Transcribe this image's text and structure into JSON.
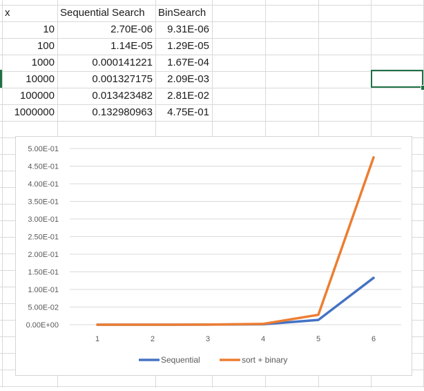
{
  "sheet": {
    "header": {
      "x": "x",
      "seq": "Sequential Search",
      "bin": "BinSearch"
    },
    "rows": [
      {
        "x": "10",
        "seq": "2.70E-06",
        "bin": "9.31E-06"
      },
      {
        "x": "100",
        "seq": "1.14E-05",
        "bin": "1.29E-05"
      },
      {
        "x": "1000",
        "seq": "0.000141221",
        "bin": "1.67E-04"
      },
      {
        "x": "10000",
        "seq": "0.001327175",
        "bin": "2.09E-03"
      },
      {
        "x": "100000",
        "seq": "0.013423482",
        "bin": "2.81E-02"
      },
      {
        "x": "1000000",
        "seq": "0.132980963",
        "bin": "4.75E-01"
      }
    ]
  },
  "chart_data": {
    "type": "line",
    "title": "",
    "x": [
      1,
      2,
      3,
      4,
      5,
      6
    ],
    "x_tick_labels": [
      "1",
      "2",
      "3",
      "4",
      "5",
      "6"
    ],
    "y_tick_labels": [
      "0.00E+00",
      "5.00E-02",
      "1.00E-01",
      "1.50E-01",
      "2.00E-01",
      "2.50E-01",
      "3.00E-01",
      "3.50E-01",
      "4.00E-01",
      "4.50E-01",
      "5.00E-01"
    ],
    "ylim": [
      0,
      0.5
    ],
    "ystep": 0.05,
    "grid": true,
    "legend_position": "bottom",
    "series": [
      {
        "name": "Sequential",
        "color": "#4472c4",
        "values": [
          2.7e-06,
          1.14e-05,
          0.000141221,
          0.001327175,
          0.013423482,
          0.132980963
        ]
      },
      {
        "name": "sort + binary",
        "color": "#ed7d31",
        "values": [
          9.31e-06,
          1.29e-05,
          0.000167,
          0.00209,
          0.0281,
          0.475
        ]
      }
    ]
  },
  "colors": {
    "gridline": "#d9d9d9",
    "chart_grid": "#d9d9d9",
    "selection": "#1e7145"
  }
}
